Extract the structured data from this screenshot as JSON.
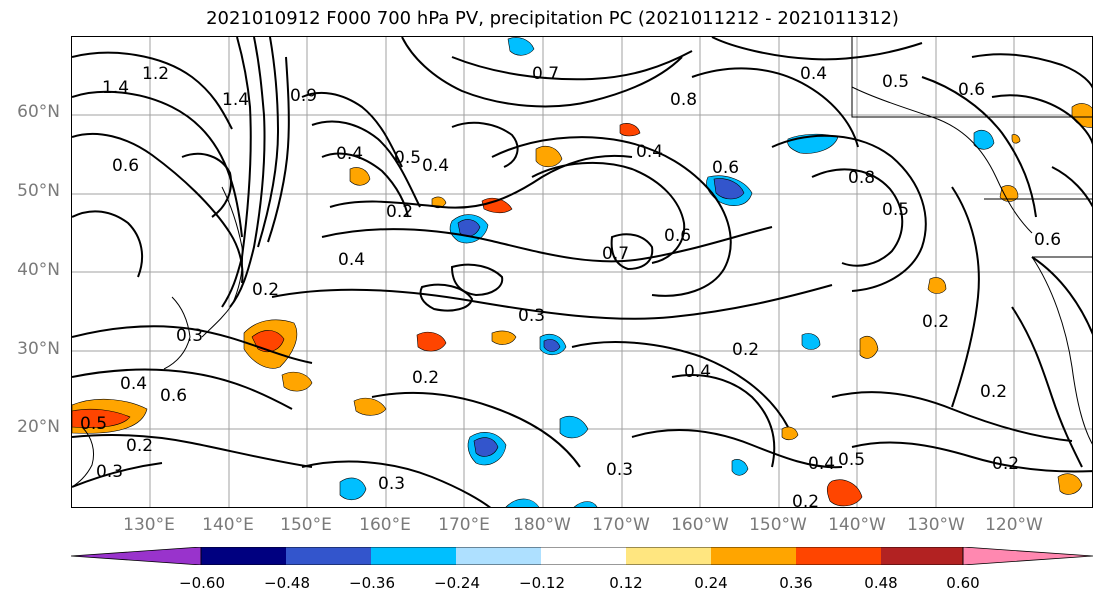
{
  "title": "2021010912 F000 700 hPa PV, precipitation PC (2021011212 - 2021011312)",
  "latitude_labels": [
    "60°N",
    "50°N",
    "40°N",
    "30°N",
    "20°N"
  ],
  "longitude_labels": [
    "130°E",
    "140°E",
    "150°E",
    "160°E",
    "170°E",
    "180°W",
    "170°W",
    "160°W",
    "150°W",
    "140°W",
    "130°W",
    "120°W"
  ],
  "colorbar": {
    "tick_labels": [
      "−0.60",
      "−0.48",
      "−0.36",
      "−0.24",
      "−0.12",
      "0.12",
      "0.24",
      "0.36",
      "0.48",
      "0.60"
    ],
    "colors": [
      "#9933cc",
      "#000080",
      "#3355cc",
      "#00bfff",
      "#aee0ff",
      "#ffffff",
      "#ffe680",
      "#ffa500",
      "#ff4500",
      "#b22222",
      "#ff88b0"
    ]
  },
  "contour_labels": [
    "1.2",
    "1.4",
    "1.4",
    "0.9",
    "0.6",
    "0.4",
    "0.5",
    "0.4",
    "0.2",
    "0.4",
    "0.2",
    "0.3",
    "0.4",
    "0.6",
    "0.5",
    "0.2",
    "0.3",
    "0.2",
    "0.3",
    "0.7",
    "0.8",
    "0.4",
    "0.6",
    "0.7",
    "0.6",
    "0.4",
    "0.8",
    "0.5",
    "0.6",
    "0.5",
    "0.2",
    "0.2",
    "0.4",
    "0.3",
    "0.4",
    "0.5",
    "0.2",
    "0.6",
    "0.2",
    "0.3",
    "0.2"
  ]
}
